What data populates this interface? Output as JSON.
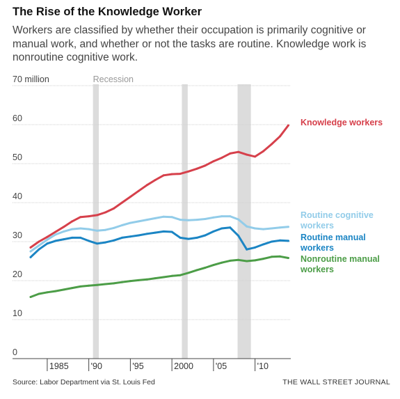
{
  "title": "The Rise of the Knowledge Worker",
  "subtitle": "Workers are classified by whether their occupation is primarily cognitive or manual work, and whether or not the tasks are routine. Knowledge work is nonroutine cognitive work.",
  "source": "Source: Labor Department via St. Louis Fed",
  "credit": "THE WALL STREET JOURNAL",
  "chart_data": {
    "type": "line",
    "title": "The Rise of the Knowledge Worker",
    "xlim": [
      1983,
      2014.3
    ],
    "ylim": [
      0,
      70
    ],
    "unit_label": "70 million",
    "yticks": [
      0,
      10,
      20,
      30,
      40,
      50,
      60,
      70
    ],
    "ytick_labels": [
      "0",
      "10",
      "20",
      "30",
      "40",
      "50",
      "60",
      "70 million"
    ],
    "xticks": [
      1985,
      1990,
      1995,
      2000,
      2005,
      2010
    ],
    "xtick_labels": [
      "1985",
      "'90",
      "'95",
      "2000",
      "'05",
      "'10"
    ],
    "grid": true,
    "recession_label": "Recession",
    "recessions": [
      [
        1990.5,
        1991.2
      ],
      [
        2001.2,
        2001.9
      ],
      [
        2007.9,
        2009.5
      ]
    ],
    "x": [
      1983,
      1984,
      1985,
      1986,
      1987,
      1988,
      1989,
      1990,
      1991,
      1992,
      1993,
      1994,
      1995,
      1996,
      1997,
      1998,
      1999,
      2000,
      2001,
      2002,
      2003,
      2004,
      2005,
      2006,
      2007,
      2008,
      2009,
      2010,
      2011,
      2012,
      2013,
      2014
    ],
    "series": [
      {
        "name": "Knowledge workers",
        "color": "#d6404b",
        "values": [
          28.5,
          30.0,
          31.2,
          32.5,
          33.8,
          35.2,
          36.3,
          36.5,
          36.8,
          37.5,
          38.5,
          40.0,
          41.5,
          43.0,
          44.5,
          45.8,
          47.0,
          47.3,
          47.4,
          48.0,
          48.7,
          49.5,
          50.6,
          51.5,
          52.6,
          53.0,
          52.3,
          51.8,
          53.2,
          55.0,
          57.0,
          59.8
        ]
      },
      {
        "name": "Routine cognitive workers",
        "color": "#92cce9",
        "values": [
          27.5,
          29.0,
          30.5,
          31.8,
          32.6,
          33.2,
          33.4,
          33.2,
          32.8,
          33.0,
          33.5,
          34.2,
          34.8,
          35.2,
          35.6,
          36.0,
          36.4,
          36.3,
          35.6,
          35.5,
          35.6,
          35.8,
          36.2,
          36.5,
          36.5,
          35.7,
          33.9,
          33.4,
          33.2,
          33.4,
          33.6,
          33.8
        ]
      },
      {
        "name": "Routine manual workers",
        "color": "#1b85c4",
        "values": [
          26.0,
          28.0,
          29.5,
          30.2,
          30.6,
          31.0,
          31.0,
          30.2,
          29.5,
          29.8,
          30.3,
          31.0,
          31.3,
          31.6,
          32.0,
          32.3,
          32.6,
          32.5,
          31.0,
          30.7,
          31.0,
          31.6,
          32.6,
          33.4,
          33.6,
          31.5,
          28.0,
          28.5,
          29.3,
          30.0,
          30.3,
          30.2
        ]
      },
      {
        "name": "Nonroutine manual workers",
        "color": "#4c9d47",
        "values": [
          15.8,
          16.6,
          17.0,
          17.3,
          17.7,
          18.1,
          18.5,
          18.7,
          18.9,
          19.1,
          19.3,
          19.6,
          19.9,
          20.1,
          20.3,
          20.6,
          20.9,
          21.2,
          21.4,
          22.0,
          22.7,
          23.3,
          24.0,
          24.6,
          25.1,
          25.3,
          25.0,
          25.2,
          25.6,
          26.1,
          26.2,
          25.8
        ]
      }
    ],
    "labels": [
      {
        "text": "Knowledge workers",
        "color": "#d6404b"
      },
      {
        "text": "Routine cognitive\nworkers",
        "color": "#92cce9"
      },
      {
        "text": "Routine manual\nworkers",
        "color": "#1b85c4"
      },
      {
        "text": "Nonroutine manual\nworkers",
        "color": "#4c9d47"
      }
    ]
  }
}
